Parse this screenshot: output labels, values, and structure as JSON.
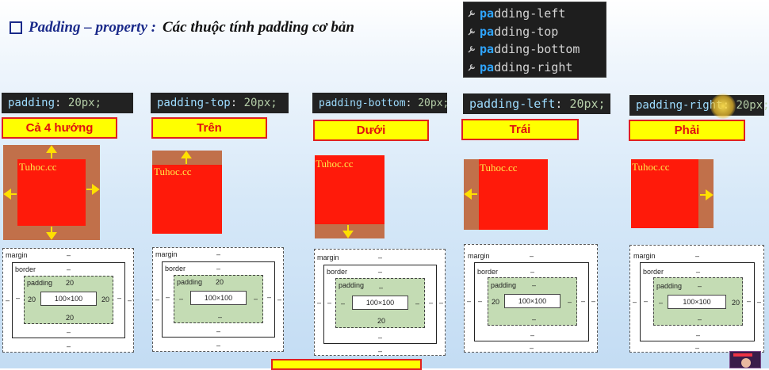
{
  "heading": {
    "title_part1": "Padding – property :",
    "title_part2": "Các thuộc tính padding cơ bản"
  },
  "autocomplete": {
    "prefix": "pa",
    "items": [
      {
        "prefix": "pa",
        "rest": "dding-left"
      },
      {
        "prefix": "pa",
        "rest": "dding-top"
      },
      {
        "prefix": "pa",
        "rest": "dding-bottom"
      },
      {
        "prefix": "pa",
        "rest": "dding-right"
      }
    ]
  },
  "examples": [
    {
      "prop": "padding",
      "sep": ":",
      "value": "20px;",
      "label": "Cả 4 hướng",
      "demo_text": "Tuhoc.cc",
      "model": {
        "margin": "margin",
        "margin_val": "–",
        "border": "border",
        "border_val": "–",
        "padding": "padding",
        "pad_top": "20",
        "pad_left": "20",
        "pad_right": "20",
        "pad_bottom": "20",
        "content": "100×100",
        "out_left": "–",
        "out_right": "–",
        "border_left": "–",
        "border_right": "–",
        "border_bottom": "–",
        "margin_bottom": "–"
      }
    },
    {
      "prop": "padding-top",
      "sep": ":",
      "value": "20px;",
      "label": "Trên",
      "demo_text": "Tuhoc.cc",
      "model": {
        "margin": "margin",
        "margin_val": "–",
        "border": "border",
        "border_val": "–",
        "padding": "padding",
        "pad_top": "20",
        "pad_left": "–",
        "pad_right": "–",
        "pad_bottom": "–",
        "content": "100×100",
        "out_left": "–",
        "out_right": "–",
        "border_left": "–",
        "border_right": "–",
        "border_bottom": "–",
        "margin_bottom": "–"
      }
    },
    {
      "prop": "padding-bottom",
      "sep": ":",
      "value": "20px;",
      "label": "Dưới",
      "demo_text": "Tuhoc.cc",
      "model": {
        "margin": "margin",
        "margin_val": "–",
        "border": "border",
        "border_val": "–",
        "padding": "padding",
        "pad_top": "–",
        "pad_left": "–",
        "pad_right": "–",
        "pad_bottom": "20",
        "content": "100×100",
        "out_left": "–",
        "out_right": "–",
        "border_left": "–",
        "border_right": "–",
        "border_bottom": "–",
        "margin_bottom": "–"
      }
    },
    {
      "prop": "padding-left",
      "sep": ":",
      "value": "20px;",
      "label": "Trái",
      "demo_text": "Tuhoc.cc",
      "model": {
        "margin": "margin",
        "margin_val": "–",
        "border": "border",
        "border_val": "–",
        "padding": "padding",
        "pad_top": "–",
        "pad_left": "20",
        "pad_right": "–",
        "pad_bottom": "–",
        "content": "100×100",
        "out_left": "–",
        "out_right": "–",
        "border_left": "–",
        "border_right": "–",
        "border_bottom": "–",
        "margin_bottom": "–"
      }
    },
    {
      "prop": "padding-right",
      "sep": ":",
      "value": "20px;",
      "label": "Phải",
      "demo_text": "Tuhoc.cc",
      "model": {
        "margin": "margin",
        "margin_val": "–",
        "border": "border",
        "border_val": "–",
        "padding": "padding",
        "pad_top": "–",
        "pad_left": "–",
        "pad_right": "20",
        "pad_bottom": "–",
        "content": "100×100",
        "out_left": "–",
        "out_right": "–",
        "border_left": "–",
        "border_right": "–",
        "border_bottom": "–",
        "margin_bottom": "–"
      }
    }
  ],
  "colors": {
    "padding_area": "#c1704a",
    "content_area": "#ff1a0a",
    "label_bg": "#ffff00",
    "label_text": "#e01010",
    "code_bg": "#222222"
  },
  "icons": {
    "suggest_item": "wrench-icon",
    "heading_bullet": "square-bullet-icon"
  }
}
